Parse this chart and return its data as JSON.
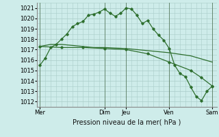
{
  "xlabel": "Pression niveau de la mer( hPa )",
  "bg_color": "#ceecea",
  "grid_color": "#aaccc8",
  "line_color": "#2d6e2d",
  "ylim": [
    1011.5,
    1021.5
  ],
  "yticks": [
    1012,
    1013,
    1014,
    1015,
    1016,
    1017,
    1018,
    1019,
    1020,
    1021
  ],
  "xtick_labels": [
    "Mer",
    "Dim",
    "Jeu",
    "Ven",
    "Sam"
  ],
  "xtick_positions": [
    0,
    72,
    96,
    144,
    192
  ],
  "vline_positions": [
    0,
    72,
    96,
    144,
    192
  ],
  "curve1_x": [
    0,
    6,
    12,
    18,
    24,
    30,
    36,
    42,
    48,
    54,
    60,
    66,
    72,
    78,
    84,
    90,
    96,
    102,
    108,
    114,
    120,
    126,
    132,
    138,
    144,
    150,
    156,
    162,
    168,
    174,
    180,
    186,
    192
  ],
  "curve1_y": [
    1015.5,
    1016.2,
    1017.2,
    1017.5,
    1018.0,
    1018.5,
    1019.2,
    1019.5,
    1019.7,
    1020.3,
    1020.4,
    1020.6,
    1020.9,
    1020.5,
    1020.2,
    1020.5,
    1021.0,
    1020.9,
    1020.3,
    1019.5,
    1019.8,
    1019.0,
    1018.4,
    1017.9,
    1017.1,
    1015.5,
    1014.7,
    1014.4,
    1013.4,
    1012.5,
    1012.1,
    1013.0,
    1013.5
  ],
  "curve2_x": [
    0,
    12,
    24,
    36,
    48,
    60,
    72,
    96,
    120,
    144,
    168,
    192
  ],
  "curve2_y": [
    1017.3,
    1017.5,
    1017.5,
    1017.4,
    1017.3,
    1017.2,
    1017.2,
    1017.1,
    1016.9,
    1016.7,
    1016.4,
    1015.8
  ],
  "curve3_x": [
    0,
    24,
    48,
    72,
    96,
    120,
    144,
    168,
    180,
    192
  ],
  "curve3_y": [
    1017.3,
    1017.2,
    1017.2,
    1017.1,
    1017.0,
    1016.6,
    1015.8,
    1015.0,
    1014.3,
    1013.5
  ],
  "xlabel_fontsize": 7,
  "tick_fontsize": 6
}
